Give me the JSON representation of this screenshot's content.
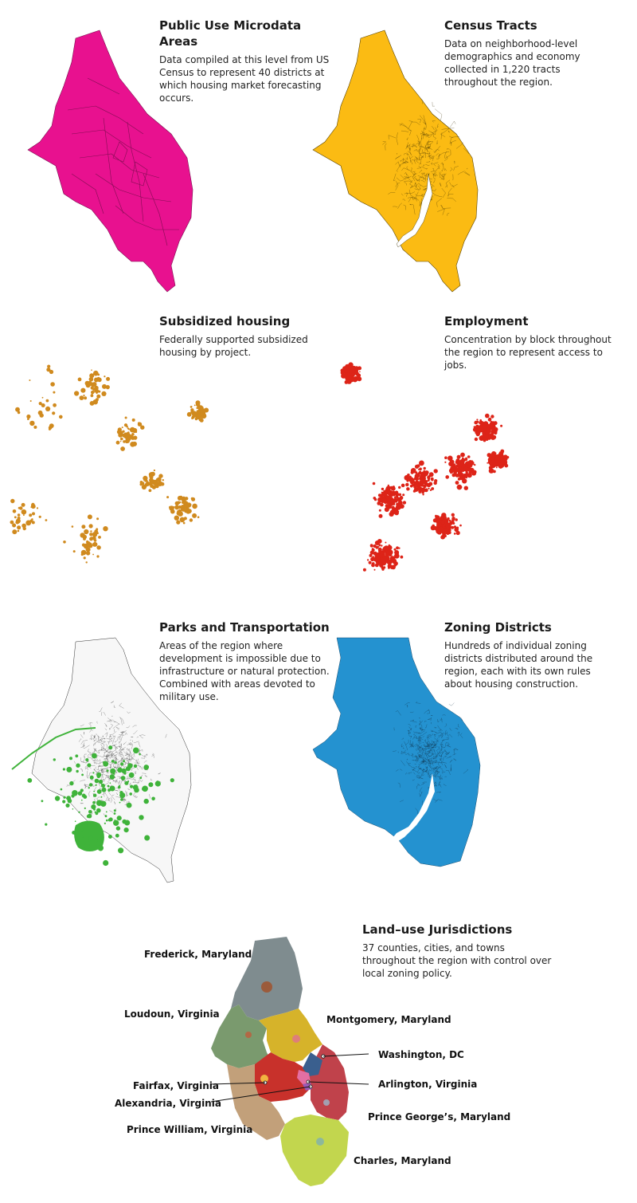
{
  "colors": {
    "pumas": "#e8118f",
    "tracts": "#fbbb13",
    "subsidized": "#d08a1e",
    "employment": "#dd2418",
    "parks": "#3fb33a",
    "roads": "#222222",
    "zoning": "#2492d0",
    "frederick": "#7f8c8f",
    "loudoun": "#7a9a6e",
    "montgomery": "#d6b32a",
    "washington": "#3a5f8e",
    "arlington": "#e46fa3",
    "fairfax": "#c8312b",
    "alexandria": "#9b59b6",
    "prince_william": "#c2a07a",
    "prince_georges": "#c0424b",
    "charles": "#c2d64e"
  },
  "panels": {
    "pumas": {
      "title": "Public Use Microdata Areas",
      "desc": "Data compiled at this level from US Census to represent 40 districts at which housing market forecasting occurs."
    },
    "tracts": {
      "title": "Census Tracts",
      "desc": "Data on neighborhood-level demographics and economy collected in 1,220 tracts throughout the region."
    },
    "subsidized": {
      "title": "Subsidized housing",
      "desc": "Federally supported subsidized housing by project."
    },
    "employment": {
      "title": "Employment",
      "desc": "Concentration by block throughout the region to represent access to jobs."
    },
    "parks": {
      "title": "Parks and Transportation",
      "desc": "Areas of the region where development is impossible due to infrastructure or natural protection. Combined with areas devoted to military use."
    },
    "zoning": {
      "title": "Zoning Districts",
      "desc": "Hundreds of individual zoning districts distributed around the region, each with its own rules about housing construction."
    },
    "jurisdictions": {
      "title": "Land–use Jurisdictions",
      "desc": "37 counties, cities, and towns throughout the region with control over local zoning policy."
    }
  },
  "jurisdiction_labels": {
    "frederick": "Frederick, Maryland",
    "loudoun": "Loudoun, Virginia",
    "montgomery": "Montgomery, Maryland",
    "washington": "Washington, DC",
    "fairfax": "Fairfax, Virginia",
    "arlington": "Arlington, Virginia",
    "alexandria": "Alexandria, Virginia",
    "prince_georges": "Prince George’s, Maryland",
    "prince_william": "Prince William, Virginia",
    "charles": "Charles, Maryland"
  }
}
